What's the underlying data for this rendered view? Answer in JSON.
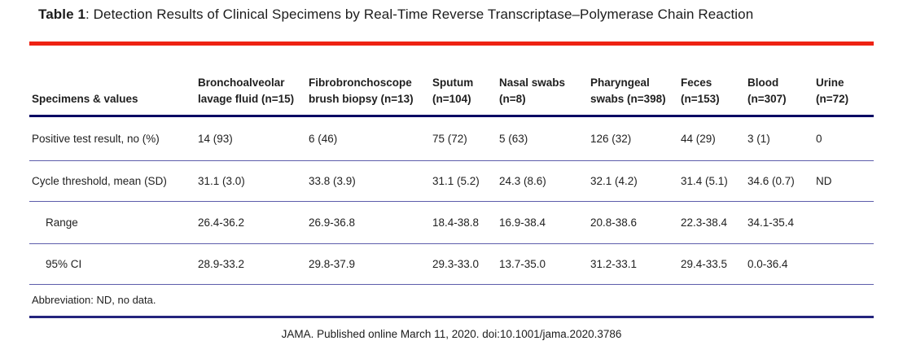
{
  "title": {
    "label_bold": "Table 1",
    "label_rest": ": Detection Results of Clinical Specimens by Real-Time Reverse Transcriptase–Polymerase Chain Reaction"
  },
  "table": {
    "header": {
      "row_label": "Specimens & values",
      "columns": [
        "Bronchoalveolar lavage fluid (n=15)",
        "Fibrobronchoscope brush biopsy (n=13)",
        "Sputum (n=104)",
        "Nasal swabs (n=8)",
        "Pharyngeal swabs (n=398)",
        "Feces (n=153)",
        "Blood (n=307)",
        "Urine (n=72)"
      ]
    },
    "rows": [
      {
        "label": "Positive test result, no (%)",
        "values": [
          "14 (93)",
          "6 (46)",
          "75 (72)",
          "5 (63)",
          "126 (32)",
          "44 (29)",
          "3 (1)",
          "0"
        ]
      },
      {
        "label": "Cycle threshold, mean (SD)",
        "values": [
          "31.1 (3.0)",
          "33.8 (3.9)",
          "31.1 (5.2)",
          "24.3 (8.6)",
          "32.1 (4.2)",
          "31.4 (5.1)",
          "34.6 (0.7)",
          "ND"
        ]
      },
      {
        "label": "Range",
        "values": [
          "26.4-36.2",
          "26.9-36.8",
          "18.4-38.8",
          "16.9-38.4",
          "20.8-38.6",
          "22.3-38.4",
          "34.1-35.4",
          ""
        ]
      },
      {
        "label": "95% CI",
        "values": [
          "28.9-33.2",
          "29.8-37.9",
          "29.3-33.0",
          "13.7-35.0",
          "31.2-33.1",
          "29.4-33.5",
          "0.0-36.4",
          ""
        ]
      }
    ],
    "footnote": "Abbreviation: ND, no data."
  },
  "footer": "JAMA. Published online March 11, 2020. doi:10.1001/jama.2020.3786",
  "colors": {
    "rule_red": "#ee2213",
    "rule_header_navy": "#050563",
    "rule_row_separator": "#5d5dab",
    "rule_bottom_navy": "#24247d",
    "text": "#1f1f1f"
  }
}
